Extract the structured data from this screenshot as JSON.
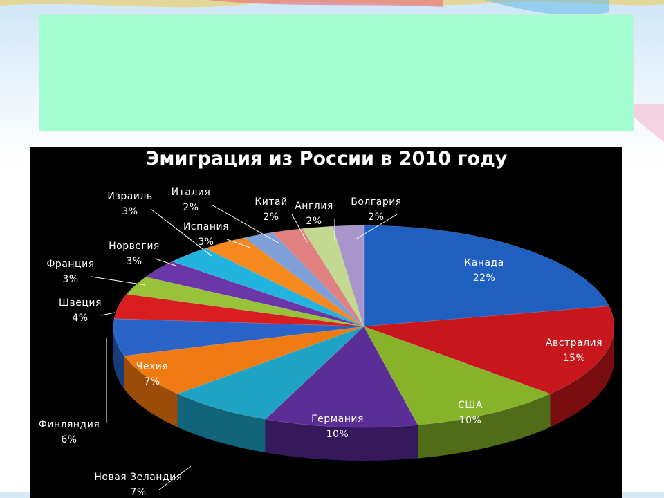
{
  "chart_data": {
    "type": "pie",
    "title": "Эмиграция из России в 2010 году",
    "slices": [
      {
        "label": "Канада",
        "value": 22,
        "value_label": "22%",
        "color": "#1f5fbf",
        "dark": "#123a78"
      },
      {
        "label": "Австралия",
        "value": 15,
        "value_label": "15%",
        "color": "#c8171c",
        "dark": "#7a0d10"
      },
      {
        "label": "США",
        "value": 10,
        "value_label": "10%",
        "color": "#86b32a",
        "dark": "#4f6c17"
      },
      {
        "label": "Германия",
        "value": 10,
        "value_label": "10%",
        "color": "#5a2e96",
        "dark": "#35195c"
      },
      {
        "label": "Новая Зеландия",
        "value": 7,
        "value_label": "7%",
        "color": "#1fa3c4",
        "dark": "#12647a"
      },
      {
        "label": "Чехия",
        "value": 7,
        "value_label": "7%",
        "color": "#f07a12",
        "dark": "#9a4c08"
      },
      {
        "label": "Финляндия",
        "value": 6,
        "value_label": "6%",
        "color": "#2a64c8",
        "dark": "#173c7c"
      },
      {
        "label": "Швеция",
        "value": 4,
        "value_label": "4%",
        "color": "#d81e20",
        "dark": "#861012"
      },
      {
        "label": "Франция",
        "value": 3,
        "value_label": "3%",
        "color": "#97c23a",
        "dark": "#5a7520"
      },
      {
        "label": "Норвегия",
        "value": 3,
        "value_label": "3%",
        "color": "#6b37a8",
        "dark": "#40206a"
      },
      {
        "label": "Израиль",
        "value": 3,
        "value_label": "3%",
        "color": "#22b4de",
        "dark": "#146d88"
      },
      {
        "label": "Испания",
        "value": 3,
        "value_label": "3%",
        "color": "#f5891e",
        "dark": "#9c560f"
      },
      {
        "label": "Италия",
        "value": 2,
        "value_label": "2%",
        "color": "#7f9fd8",
        "dark": "#4d6290"
      },
      {
        "label": "Китай",
        "value": 2,
        "value_label": "2%",
        "color": "#e08080",
        "dark": "#904f4f"
      },
      {
        "label": "Англия",
        "value": 2,
        "value_label": "2%",
        "color": "#c3d991",
        "dark": "#7a8a5a"
      },
      {
        "label": "Болгария",
        "value": 2,
        "value_label": "2%",
        "color": "#a895cc",
        "dark": "#665a80"
      }
    ],
    "legend": "none",
    "style": "3d"
  }
}
